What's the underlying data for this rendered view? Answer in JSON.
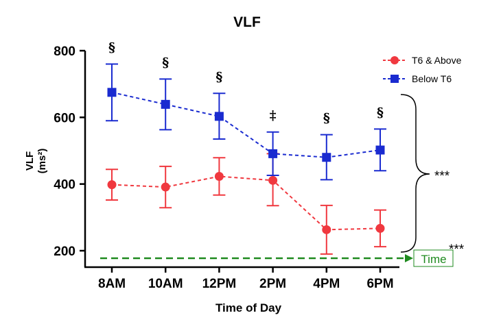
{
  "chart_data": {
    "type": "line",
    "title": "VLF",
    "xlabel": "Time of Day",
    "ylabel": "VLF",
    "ylabel_unit": "(ms²)",
    "categories": [
      "8AM",
      "10AM",
      "12PM",
      "2PM",
      "4PM",
      "6PM"
    ],
    "ylim": [
      160,
      800
    ],
    "yticks": [
      200,
      400,
      600,
      800
    ],
    "grid": false,
    "legend_position": "top-right",
    "series": [
      {
        "name": "T6 & Above",
        "color": "#f0383f",
        "marker": "circle",
        "line_style": "dashed",
        "values": [
          398,
          391,
          423,
          411,
          263,
          267
        ],
        "error_upper": [
          444,
          453,
          479,
          491,
          336,
          322
        ],
        "error_lower": [
          352,
          329,
          367,
          335,
          190,
          212
        ]
      },
      {
        "name": "Below T6",
        "color": "#1a2bd0",
        "marker": "square",
        "line_style": "dashed",
        "values": [
          675,
          639,
          603,
          491,
          480,
          502
        ],
        "error_upper": [
          760,
          715,
          672,
          556,
          548,
          565
        ],
        "error_lower": [
          590,
          563,
          535,
          426,
          413,
          440
        ]
      }
    ],
    "annotations": {
      "significance_marks": [
        "§",
        "§",
        "§",
        "‡",
        "§",
        "§"
      ],
      "group_bracket_label": "***",
      "time_arrow_label": "Time",
      "time_arrow_stars": "***"
    }
  },
  "colors": {
    "axis": "#000000",
    "time_arrow": "#1e8a1e",
    "bracket": "#000000"
  }
}
